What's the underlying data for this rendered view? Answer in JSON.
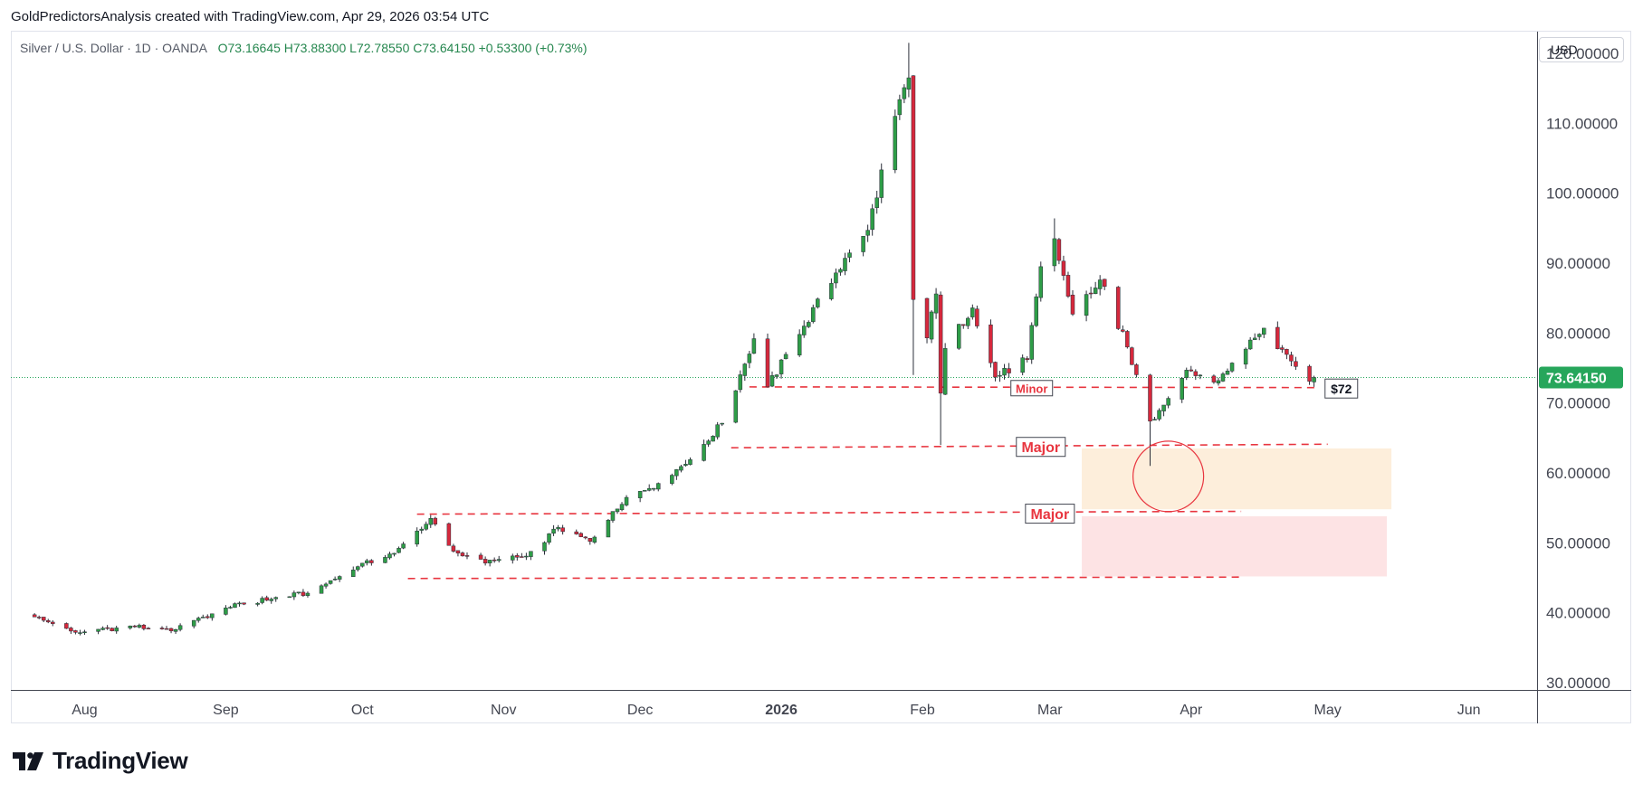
{
  "header": {
    "attribution": "GoldPredictorsAnalysis created with TradingView.com, Apr 29, 2026 03:54 UTC"
  },
  "legend": {
    "symbol": "Silver / U.S. Dollar · 1D · OANDA",
    "ohlc": "O73.16645  H73.88300  L72.78550  C73.64150  +0.53300 (+0.73%)"
  },
  "price_scale": {
    "currency": "USD"
  },
  "brand": {
    "name": "TradingView",
    "logo_icon": "tradingview-logo-icon"
  },
  "colors": {
    "up": "#2e9d47",
    "down": "#d6283c",
    "level_line": "#e8353f",
    "last_price": "#26a65b",
    "axis": "#787b86"
  },
  "chart_data": {
    "type": "candlestick",
    "ylim": [
      30,
      125
    ],
    "yticks": [
      "120.00000",
      "110.00000",
      "100.00000",
      "90.00000",
      "80.00000",
      "70.00000",
      "60.00000",
      "50.00000",
      "40.00000",
      "30.00000"
    ],
    "ytick_values": [
      120,
      110,
      100,
      90,
      80,
      70,
      60,
      50,
      40,
      30
    ],
    "x_ticks": [
      {
        "label": "Aug",
        "date": "2025-08-01"
      },
      {
        "label": "Sep",
        "date": "2025-09-01"
      },
      {
        "label": "Oct",
        "date": "2025-10-01"
      },
      {
        "label": "Nov",
        "date": "2025-11-01"
      },
      {
        "label": "Dec",
        "date": "2025-12-01"
      },
      {
        "label": "2026",
        "date": "2026-01-01",
        "bold": true
      },
      {
        "label": "Feb",
        "date": "2026-02-01"
      },
      {
        "label": "Mar",
        "date": "2026-03-01"
      },
      {
        "label": "Apr",
        "date": "2026-04-01"
      },
      {
        "label": "May",
        "date": "2026-05-01"
      },
      {
        "label": "Jun",
        "date": "2026-06-01"
      }
    ],
    "last_price": {
      "value": 73.6415,
      "label": "73.64150"
    },
    "anchors": [
      {
        "date": "2025-07-21",
        "close": 39.4
      },
      {
        "date": "2025-07-30",
        "close": 37.2
      },
      {
        "date": "2025-08-12",
        "close": 38.0
      },
      {
        "date": "2025-08-21",
        "close": 37.6
      },
      {
        "date": "2025-09-01",
        "close": 40.7
      },
      {
        "date": "2025-09-12",
        "close": 42.2
      },
      {
        "date": "2025-09-19",
        "close": 42.8
      },
      {
        "date": "2025-09-30",
        "close": 46.6
      },
      {
        "date": "2025-10-08",
        "close": 48.5
      },
      {
        "date": "2025-10-16",
        "close": 53.5
      },
      {
        "date": "2025-10-21",
        "close": 48.8
      },
      {
        "date": "2025-10-28",
        "close": 47.1
      },
      {
        "date": "2025-11-06",
        "close": 48.1
      },
      {
        "date": "2025-11-13",
        "close": 52.2
      },
      {
        "date": "2025-11-20",
        "close": 50.2
      },
      {
        "date": "2025-11-28",
        "close": 56.5
      },
      {
        "date": "2025-12-05",
        "close": 58.5
      },
      {
        "date": "2025-12-12",
        "close": 61.9
      },
      {
        "date": "2025-12-19",
        "close": 67.1
      },
      {
        "date": "2025-12-26",
        "close": 79.2
      },
      {
        "date": "2025-12-29",
        "close": 72.3
      },
      {
        "date": "2026-01-06",
        "close": 81.0
      },
      {
        "date": "2026-01-13",
        "close": 88.6
      },
      {
        "date": "2026-01-20",
        "close": 94.7
      },
      {
        "date": "2026-01-26",
        "close": 111.0
      },
      {
        "date": "2026-01-29",
        "close": 116.5
      },
      {
        "date": "2026-01-30",
        "close": 84.8
      },
      {
        "date": "2026-02-02",
        "close": 79.3
      },
      {
        "date": "2026-02-04",
        "close": 85.6
      },
      {
        "date": "2026-02-05",
        "close": 71.4
      },
      {
        "date": "2026-02-06",
        "close": 77.8
      },
      {
        "date": "2026-02-12",
        "close": 83.6
      },
      {
        "date": "2026-02-17",
        "close": 73.7
      },
      {
        "date": "2026-02-24",
        "close": 76.2
      },
      {
        "date": "2026-02-27",
        "close": 89.5
      },
      {
        "date": "2026-03-02",
        "close": 93.5
      },
      {
        "date": "2026-03-06",
        "close": 82.7
      },
      {
        "date": "2026-03-12",
        "close": 87.6
      },
      {
        "date": "2026-03-18",
        "close": 78.0
      },
      {
        "date": "2026-03-23",
        "close": 67.4
      },
      {
        "date": "2026-03-26",
        "close": 69.7
      },
      {
        "date": "2026-03-31",
        "close": 74.7
      },
      {
        "date": "2026-04-07",
        "close": 73.2
      },
      {
        "date": "2026-04-14",
        "close": 79.0
      },
      {
        "date": "2026-04-17",
        "close": 80.7
      },
      {
        "date": "2026-04-23",
        "close": 76.0
      },
      {
        "date": "2026-04-27",
        "close": 73.1
      },
      {
        "date": "2026-04-28",
        "close": 73.6415
      }
    ],
    "levels": [
      {
        "label": "Minor",
        "start": "2025-12-25",
        "end": "2026-04-29",
        "y1": 72.3,
        "y2": 72.2
      },
      {
        "label": "Major",
        "start": "2025-12-21",
        "end": "2026-05-01",
        "y1": 63.6,
        "y2": 64.1
      },
      {
        "label": "Major",
        "start": "2025-10-13",
        "end": "2026-04-12",
        "y1": 54.1,
        "y2": 54.5
      },
      {
        "label": "",
        "start": "2025-10-11",
        "end": "2026-04-12",
        "y1": 44.9,
        "y2": 45.1
      }
    ],
    "zones": [
      {
        "start": "2026-03-08",
        "end": "2026-05-15",
        "top": 63.5,
        "bottom": 54.8,
        "color": "#fdeedb"
      },
      {
        "start": "2026-03-08",
        "end": "2026-05-14",
        "top": 53.8,
        "bottom": 45.2,
        "color": "#fde3e4"
      }
    ],
    "circle": {
      "date": "2026-03-27",
      "value": 59.5
    },
    "price_note": {
      "text": "$72",
      "date": "2026-05-04",
      "value": 72.0
    }
  }
}
